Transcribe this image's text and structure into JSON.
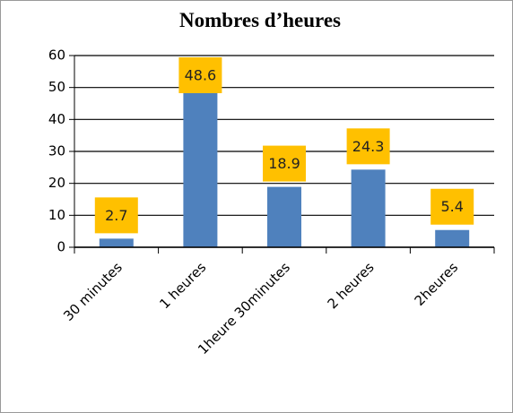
{
  "chart_data": {
    "type": "bar",
    "title": "Nombres d’heures",
    "categories": [
      "30 minutes",
      "1 heures",
      "1heure 30minutes",
      "2 heures",
      "2heures"
    ],
    "values": [
      2.7,
      48.6,
      18.9,
      24.3,
      5.4
    ],
    "color": "#4f81bd",
    "label_color": "#ffc000",
    "ylim": [
      0,
      60
    ],
    "yticks": [
      0,
      10,
      20,
      30,
      40,
      50,
      60
    ],
    "grid": true
  }
}
